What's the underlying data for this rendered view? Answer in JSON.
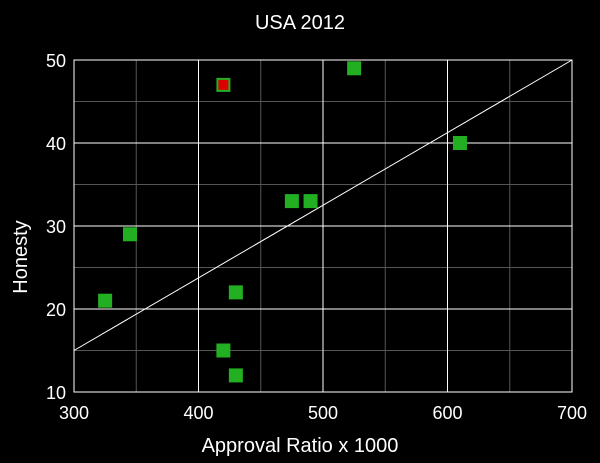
{
  "chart_data": {
    "type": "scatter",
    "title": "USA 2012",
    "xlabel": "Approval Ratio x 1000",
    "ylabel": "Honesty",
    "xlim": [
      300,
      700
    ],
    "ylim": [
      10,
      50
    ],
    "x_ticks": [
      300,
      400,
      500,
      600,
      700
    ],
    "y_ticks": [
      10,
      20,
      30,
      40,
      50
    ],
    "x_minor_grid": [
      350,
      450,
      550,
      650
    ],
    "y_minor_grid": [
      15,
      25,
      35,
      45
    ],
    "grid": true,
    "series": [
      {
        "color": "#22b022",
        "points": [
          {
            "x": 325,
            "y": 21
          },
          {
            "x": 345,
            "y": 29
          },
          {
            "x": 420,
            "y": 15
          },
          {
            "x": 430,
            "y": 12
          },
          {
            "x": 430,
            "y": 22
          },
          {
            "x": 475,
            "y": 33
          },
          {
            "x": 490,
            "y": 33
          },
          {
            "x": 525,
            "y": 49
          },
          {
            "x": 610,
            "y": 40
          },
          {
            "x": 420,
            "y": 47
          }
        ]
      },
      {
        "color": "#dd0000",
        "points": [
          {
            "x": 420,
            "y": 47
          }
        ]
      }
    ],
    "trend_line": {
      "color": "#ffffff",
      "start": {
        "x": 300,
        "y": 15
      },
      "end": {
        "x": 700,
        "y": 50
      }
    },
    "colors": {
      "background": "#000000",
      "axes": "#ffffff",
      "major_grid": "#ffffff",
      "minor_grid": "#555555"
    }
  }
}
